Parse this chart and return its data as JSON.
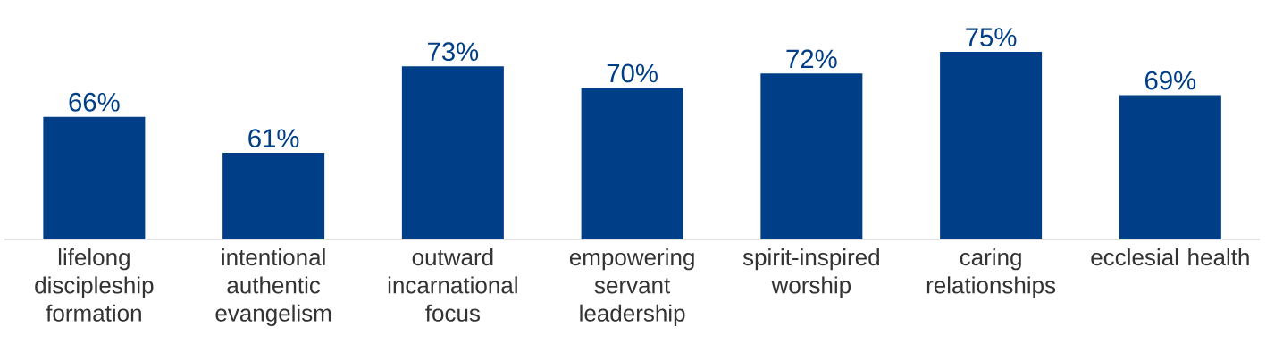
{
  "chart_data": {
    "type": "bar",
    "categories": [
      "lifelong discipleship formation",
      "intentional authentic evangelism",
      "outward incarnational focus",
      "empowering servant leadership",
      "spirit-inspired worship",
      "caring relationships",
      "ecclesial health"
    ],
    "values": [
      66,
      61,
      73,
      70,
      72,
      75,
      69
    ],
    "value_labels": [
      "66%",
      "61%",
      "73%",
      "70%",
      "72%",
      "75%",
      "69%"
    ],
    "color": "#003f87",
    "ylim": [
      49,
      75
    ],
    "tick_labels": "x"
  }
}
